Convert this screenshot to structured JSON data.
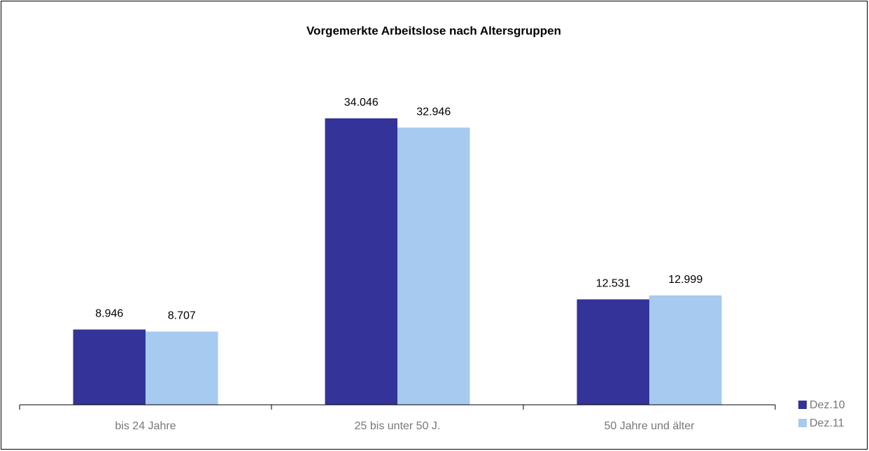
{
  "chart_data": {
    "type": "bar",
    "title": "Vorgemerkte Arbeitslose nach Altersgruppen",
    "categories": [
      "bis 24 Jahre",
      "25 bis unter 50 J.",
      "50 Jahre und älter"
    ],
    "series": [
      {
        "name": "Dez.10",
        "color": "#333399",
        "values": [
          8946,
          34046,
          12531
        ],
        "value_labels": [
          "8.946",
          "34.046",
          "12.531"
        ]
      },
      {
        "name": "Dez.11",
        "color": "#a6caf0",
        "values": [
          8707,
          32946,
          12999
        ],
        "value_labels": [
          "8.707",
          "32.946",
          "12.999"
        ]
      }
    ],
    "legend": "right"
  }
}
